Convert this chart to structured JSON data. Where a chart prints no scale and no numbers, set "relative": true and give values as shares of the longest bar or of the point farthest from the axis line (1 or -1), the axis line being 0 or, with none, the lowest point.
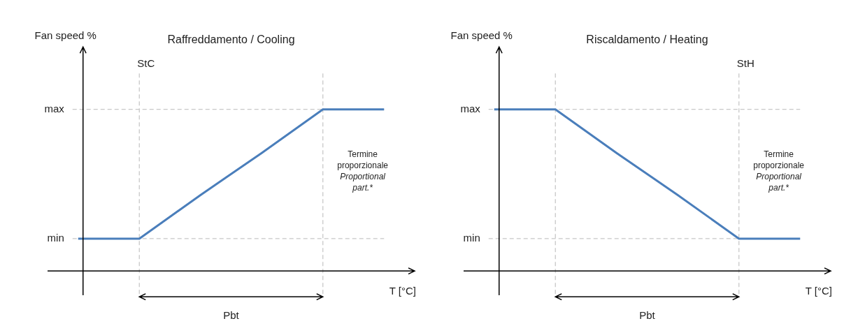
{
  "chart_data": [
    {
      "type": "line",
      "title": "Raffreddamento / Cooling",
      "xlabel": "T [°C]",
      "ylabel": "Fan speed %",
      "relative": true,
      "legend": false,
      "grid": false,
      "categories": [
        null,
        null,
        null,
        null,
        null,
        null
      ],
      "series": [
        {
          "color": "#4a7ebb",
          "values": [
            0.2,
            0.2,
            0.47,
            0.73,
            1,
            1
          ]
        }
      ],
      "annotations": [
        "Pbt",
        "Termine proporzionale",
        "Proportional part.*",
        "StC",
        "max",
        "min"
      ]
    },
    {
      "type": "line",
      "title": "Riscaldamento / Heating",
      "xlabel": "T [°C]",
      "ylabel": "Fan speed %",
      "relative": true,
      "legend": false,
      "grid": false,
      "categories": [
        null,
        null,
        null,
        null,
        null,
        null
      ],
      "series": [
        {
          "color": "#4a7ebb",
          "values": [
            1,
            1,
            0.73,
            0.47,
            0.2,
            0.2
          ]
        }
      ],
      "annotations": [
        "Pbt",
        "Termine proporzionale",
        "Proportional part.*",
        "StH",
        "max",
        "min"
      ]
    }
  ]
}
